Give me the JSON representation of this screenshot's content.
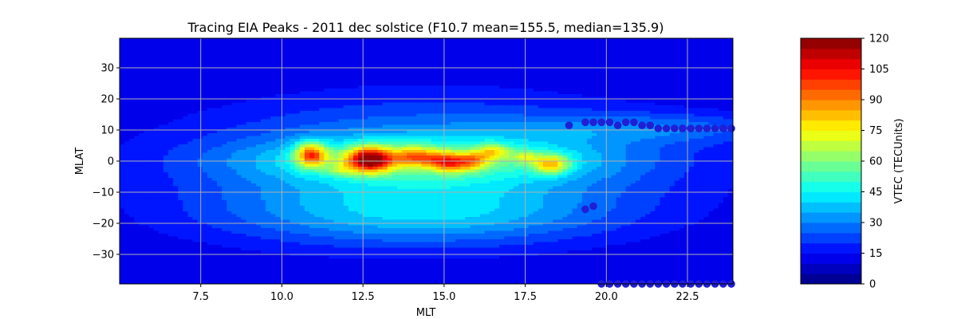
{
  "chart_data": {
    "type": "heatmap",
    "title": "Tracing EIA Peaks - 2011 dec solstice (F10.7 mean=155.5, median=135.9)",
    "xlabel": "MLT",
    "ylabel": "MLAT",
    "xlim": [
      5.0,
      23.9
    ],
    "ylim": [
      -39.5,
      39.5
    ],
    "xticks": [
      7.5,
      10.0,
      12.5,
      15.0,
      17.5,
      20.0,
      22.5
    ],
    "xtick_labels": [
      "7.5",
      "10.0",
      "12.5",
      "15.0",
      "17.5",
      "20.0",
      "22.5"
    ],
    "yticks": [
      -30,
      -20,
      -10,
      0,
      10,
      20,
      30
    ],
    "ytick_labels": [
      "−30",
      "−20",
      "−10",
      "0",
      "10",
      "20",
      "30"
    ],
    "grid": true,
    "colorbar": {
      "label": "VTEC (TECUnits)",
      "colormap": "jet",
      "range": [
        0,
        120
      ],
      "levels": 24,
      "ticks": [
        0,
        15,
        30,
        45,
        60,
        75,
        90,
        105,
        120
      ],
      "tick_labels": [
        "0",
        "15",
        "30",
        "45",
        "60",
        "75",
        "90",
        "105",
        "120"
      ]
    },
    "peak_markers": {
      "color": "#1f1fd6",
      "points": [
        {
          "x": 18.85,
          "y": 11.5
        },
        {
          "x": 19.35,
          "y": 12.5
        },
        {
          "x": 19.6,
          "y": 12.5
        },
        {
          "x": 19.85,
          "y": 12.5
        },
        {
          "x": 20.1,
          "y": 12.5
        },
        {
          "x": 20.35,
          "y": 11.5
        },
        {
          "x": 20.6,
          "y": 12.5
        },
        {
          "x": 20.85,
          "y": 12.5
        },
        {
          "x": 21.1,
          "y": 11.5
        },
        {
          "x": 21.35,
          "y": 11.5
        },
        {
          "x": 21.6,
          "y": 10.5
        },
        {
          "x": 21.85,
          "y": 10.5
        },
        {
          "x": 22.1,
          "y": 10.5
        },
        {
          "x": 22.35,
          "y": 10.5
        },
        {
          "x": 22.6,
          "y": 10.5
        },
        {
          "x": 22.85,
          "y": 10.5
        },
        {
          "x": 23.1,
          "y": 10.5
        },
        {
          "x": 23.35,
          "y": 10.5
        },
        {
          "x": 23.6,
          "y": 10.5
        },
        {
          "x": 23.85,
          "y": 10.5
        },
        {
          "x": 19.35,
          "y": -15.5
        },
        {
          "x": 19.6,
          "y": -14.5
        },
        {
          "x": 19.85,
          "y": -39.5
        },
        {
          "x": 20.1,
          "y": -39.5
        },
        {
          "x": 20.35,
          "y": -39.5
        },
        {
          "x": 20.6,
          "y": -39.5
        },
        {
          "x": 20.85,
          "y": -39.5
        },
        {
          "x": 21.1,
          "y": -39.5
        },
        {
          "x": 21.35,
          "y": -39.5
        },
        {
          "x": 21.6,
          "y": -39.5
        },
        {
          "x": 21.85,
          "y": -39.5
        },
        {
          "x": 22.1,
          "y": -39.5
        },
        {
          "x": 22.35,
          "y": -39.5
        },
        {
          "x": 22.6,
          "y": -39.5
        },
        {
          "x": 22.85,
          "y": -39.5
        },
        {
          "x": 23.1,
          "y": -39.5
        },
        {
          "x": 23.35,
          "y": -39.5
        },
        {
          "x": 23.6,
          "y": -39.5
        },
        {
          "x": 23.85,
          "y": -39.5
        }
      ]
    },
    "vtec_field": {
      "background": 10,
      "blobs": [
        {
          "x": 14.5,
          "y": -2,
          "sx": 5.0,
          "sy": 14,
          "amp": 30
        },
        {
          "x": 12.5,
          "y": -18,
          "sx": 4.0,
          "sy": 7,
          "amp": 10
        },
        {
          "x": 16.0,
          "y": -18,
          "sx": 3.5,
          "sy": 6,
          "amp": 8
        },
        {
          "x": 14.5,
          "y": 0.5,
          "sx": 3.8,
          "sy": 4.5,
          "amp": 22
        },
        {
          "x": 21.5,
          "y": 10.5,
          "sx": 3.0,
          "sy": 3.5,
          "amp": 14
        },
        {
          "x": 10.9,
          "y": 2,
          "sx": 0.35,
          "sy": 2.8,
          "amp": 55
        },
        {
          "x": 12.7,
          "y": 0.5,
          "sx": 0.5,
          "sy": 2.8,
          "amp": 72
        },
        {
          "x": 14.1,
          "y": 1.5,
          "sx": 0.45,
          "sy": 2.2,
          "amp": 35
        },
        {
          "x": 14.8,
          "y": 0,
          "sx": 0.3,
          "sy": 2.0,
          "amp": 25
        },
        {
          "x": 15.3,
          "y": -0.5,
          "sx": 0.3,
          "sy": 2.2,
          "amp": 35
        },
        {
          "x": 15.9,
          "y": 0,
          "sx": 0.3,
          "sy": 2.0,
          "amp": 30
        },
        {
          "x": 16.5,
          "y": 3,
          "sx": 0.35,
          "sy": 1.8,
          "amp": 28
        },
        {
          "x": 17.5,
          "y": 1.5,
          "sx": 0.3,
          "sy": 1.5,
          "amp": 18
        },
        {
          "x": 18.3,
          "y": -1,
          "sx": 0.4,
          "sy": 2.2,
          "amp": 40
        },
        {
          "x": 11.8,
          "y": -3,
          "sx": 0.3,
          "sy": 1.5,
          "amp": 14
        }
      ]
    }
  }
}
